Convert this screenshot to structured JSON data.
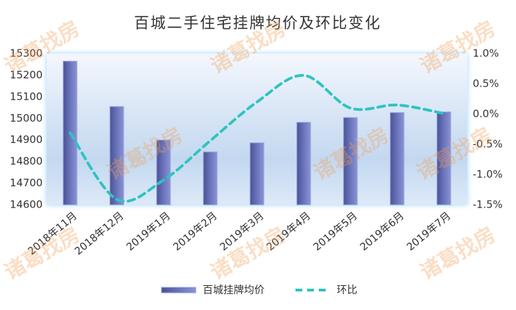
{
  "chart_data": {
    "type": "bar",
    "title": "百城二手住宅挂牌均价及环比变化",
    "watermark": "诸葛找房",
    "categories": [
      "2018年11月",
      "2018年12月",
      "2019年1月",
      "2019年2月",
      "2019年3月",
      "2019年4月",
      "2019年5月",
      "2019年6月",
      "2019年7月"
    ],
    "series": [
      {
        "name": "百城挂牌均价",
        "type": "bar",
        "color": "#5b63a8",
        "values": [
          15265,
          15055,
          14900,
          14845,
          14887,
          14982,
          15004,
          15027,
          15030
        ]
      },
      {
        "name": "环比",
        "type": "line",
        "color": "#2ec4c0",
        "axis": "y2",
        "values": [
          -0.31,
          -1.41,
          -1.09,
          -0.44,
          0.2,
          0.64,
          0.1,
          0.15,
          0.01
        ]
      }
    ],
    "ylim": [
      14600,
      15300
    ],
    "yticks": [
      14600,
      14700,
      14800,
      14900,
      15000,
      15100,
      15200,
      15300
    ],
    "y2lim": [
      -1.5,
      1.0
    ],
    "y2ticks": [
      {
        "value": -1.5,
        "label": "-1.5%"
      },
      {
        "value": -1.0,
        "label": "-1.0%"
      },
      {
        "value": -0.5,
        "label": "-0.5%"
      },
      {
        "value": 0.0,
        "label": "0.0%"
      },
      {
        "value": 0.5,
        "label": "0.5%"
      },
      {
        "value": 1.0,
        "label": "1.0%"
      }
    ],
    "legend": "bottom"
  }
}
